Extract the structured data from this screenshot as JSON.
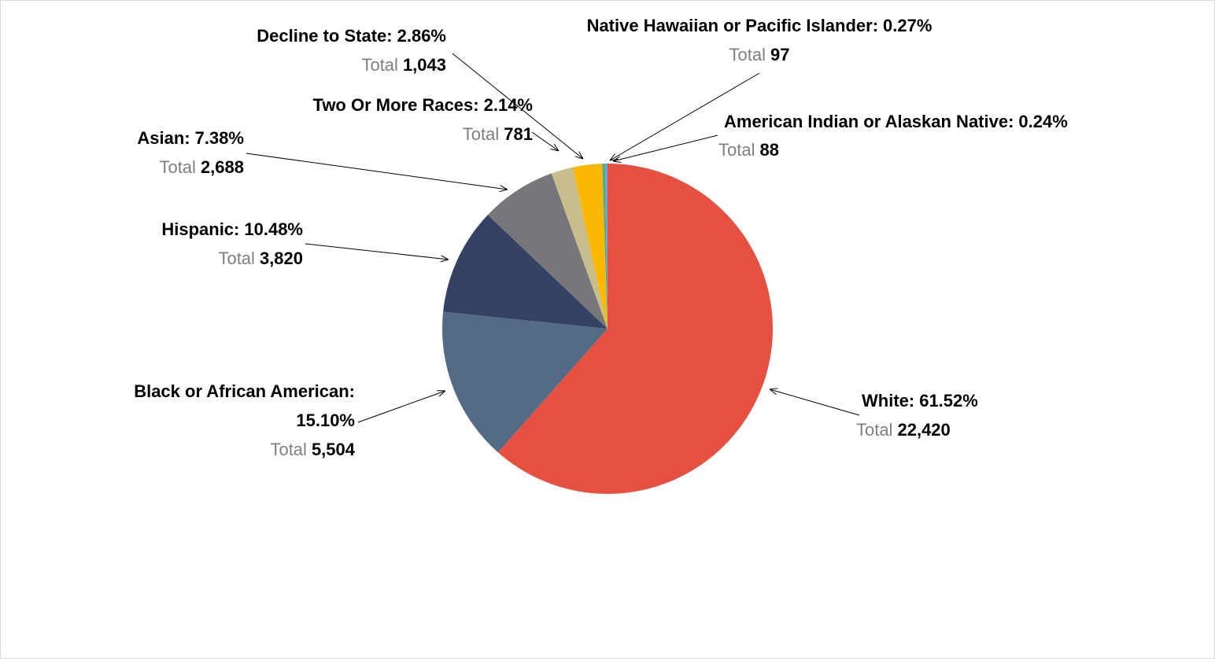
{
  "chart_data": {
    "type": "pie",
    "categories": [
      "White:",
      "Black or African American:",
      "Hispanic:",
      "Asian:",
      "Two Or More Races:",
      "Decline to State:",
      "Native Hawaiian or Pacific Islander:",
      "American Indian or Alaskan Native:"
    ],
    "values": [
      61.52,
      15.1,
      10.48,
      7.38,
      2.14,
      2.86,
      0.27,
      0.24
    ],
    "value_labels": [
      "61.52%",
      "15.10%",
      "10.48%",
      "7.38%",
      "2.14%",
      "2.86%",
      "0.27%",
      "0.24%"
    ],
    "colors": [
      "#e65040",
      "#546b86",
      "#364264",
      "#76777b",
      "#c9bd8e",
      "#fbb800",
      "#4eaa8c",
      "#6fa3c9"
    ],
    "total_prefix": "Total",
    "totals": [
      22420,
      5504,
      3820,
      2688,
      781,
      1043,
      97,
      88
    ],
    "total_labels": [
      "22,420",
      "5,504",
      "3,820",
      "2,688",
      "781",
      "1,043",
      "97",
      "88"
    ]
  }
}
